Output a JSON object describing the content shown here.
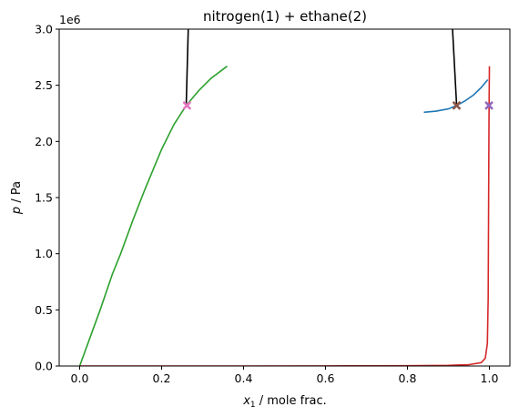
{
  "chart_data": {
    "type": "line",
    "title": "nitrogen(1) + ethane(2)",
    "xlabel_symbol": "x",
    "xlabel_subscript": "1",
    "xlabel_rest": " / mole frac.",
    "ylabel_symbol": "p",
    "ylabel_rest": " / Pa",
    "y_offset_label": "1e6",
    "xlim": [
      -0.05,
      1.05
    ],
    "ylim": [
      0,
      3.0
    ],
    "xticks": [
      0.0,
      0.2,
      0.4,
      0.6,
      0.8,
      1.0
    ],
    "xtick_labels": [
      "0.0",
      "0.2",
      "0.4",
      "0.6",
      "0.8",
      "1.0"
    ],
    "yticks": [
      0.0,
      0.5,
      1.0,
      1.5,
      2.0,
      2.5,
      3.0
    ],
    "ytick_labels": [
      "0.0",
      "0.5",
      "1.0",
      "1.5",
      "2.0",
      "2.5",
      "3.0"
    ],
    "grid": false,
    "series": [
      {
        "color": "#2ca02c",
        "x": [
          0.0,
          0.02,
          0.05,
          0.08,
          0.1,
          0.13,
          0.16,
          0.2,
          0.23,
          0.26,
          0.29,
          0.32,
          0.36
        ],
        "y": [
          0.0,
          0.2,
          0.5,
          0.82,
          1.0,
          1.3,
          1.58,
          1.93,
          2.15,
          2.32,
          2.45,
          2.56,
          2.67
        ]
      },
      {
        "color": "#1f77b4",
        "x": [
          0.84,
          0.87,
          0.9,
          0.92,
          0.94,
          0.96,
          0.98,
          0.996
        ],
        "y": [
          2.26,
          2.27,
          2.29,
          2.32,
          2.36,
          2.41,
          2.48,
          2.55
        ]
      },
      {
        "color": "#d62728",
        "x": [
          0.0,
          0.2,
          0.4,
          0.6,
          0.8,
          0.9,
          0.95,
          0.98,
          0.99,
          0.995,
          0.997,
          0.998,
          0.999,
          1.0
        ],
        "y": [
          0.0,
          0.0,
          0.0,
          0.001,
          0.003,
          0.006,
          0.012,
          0.03,
          0.07,
          0.2,
          0.6,
          1.4,
          2.2,
          2.67
        ]
      },
      {
        "color": "#000000",
        "x": [
          0.26,
          0.265
        ],
        "y": [
          2.32,
          3.0
        ]
      },
      {
        "color": "#000000",
        "x": [
          0.92,
          0.91
        ],
        "y": [
          2.32,
          3.0
        ]
      }
    ],
    "markers": [
      {
        "color": "#e377c2",
        "x": 0.262,
        "y": 2.32
      },
      {
        "color": "#8c564b",
        "x": 0.92,
        "y": 2.32
      },
      {
        "color": "#9467bd",
        "x": 0.999,
        "y": 2.32
      }
    ]
  }
}
